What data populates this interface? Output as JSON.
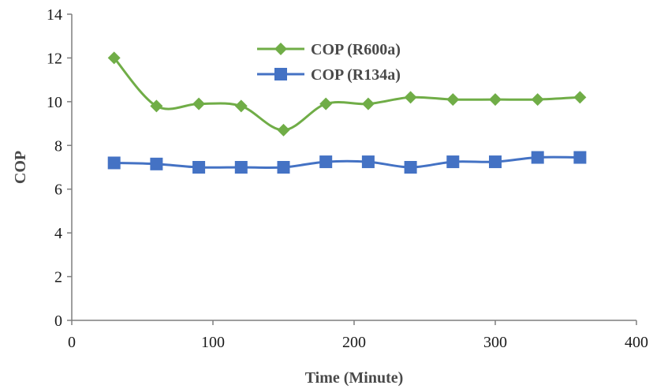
{
  "chart_data": {
    "type": "line",
    "title": "",
    "xlabel": "Time (Minute)",
    "ylabel": "COP",
    "xlim": [
      0,
      400
    ],
    "ylim": [
      0,
      14
    ],
    "xticks": [
      0,
      100,
      200,
      300,
      400
    ],
    "yticks": [
      0,
      2,
      4,
      6,
      8,
      10,
      12,
      14
    ],
    "grid": false,
    "legend": "top-center",
    "x": [
      30,
      60,
      90,
      120,
      150,
      180,
      210,
      240,
      270,
      300,
      330,
      360
    ],
    "series": [
      {
        "name": "COP (R600a)",
        "marker": "diamond",
        "color": "#70AD47",
        "values": [
          12.0,
          9.8,
          9.9,
          9.8,
          8.7,
          9.9,
          9.9,
          10.2,
          10.1,
          10.1,
          10.1,
          10.2
        ]
      },
      {
        "name": "COP (R134a)",
        "marker": "square",
        "color": "#4472C4",
        "values": [
          7.2,
          7.15,
          7.0,
          7.0,
          7.0,
          7.25,
          7.25,
          7.0,
          7.25,
          7.25,
          7.45,
          7.45
        ]
      }
    ]
  }
}
